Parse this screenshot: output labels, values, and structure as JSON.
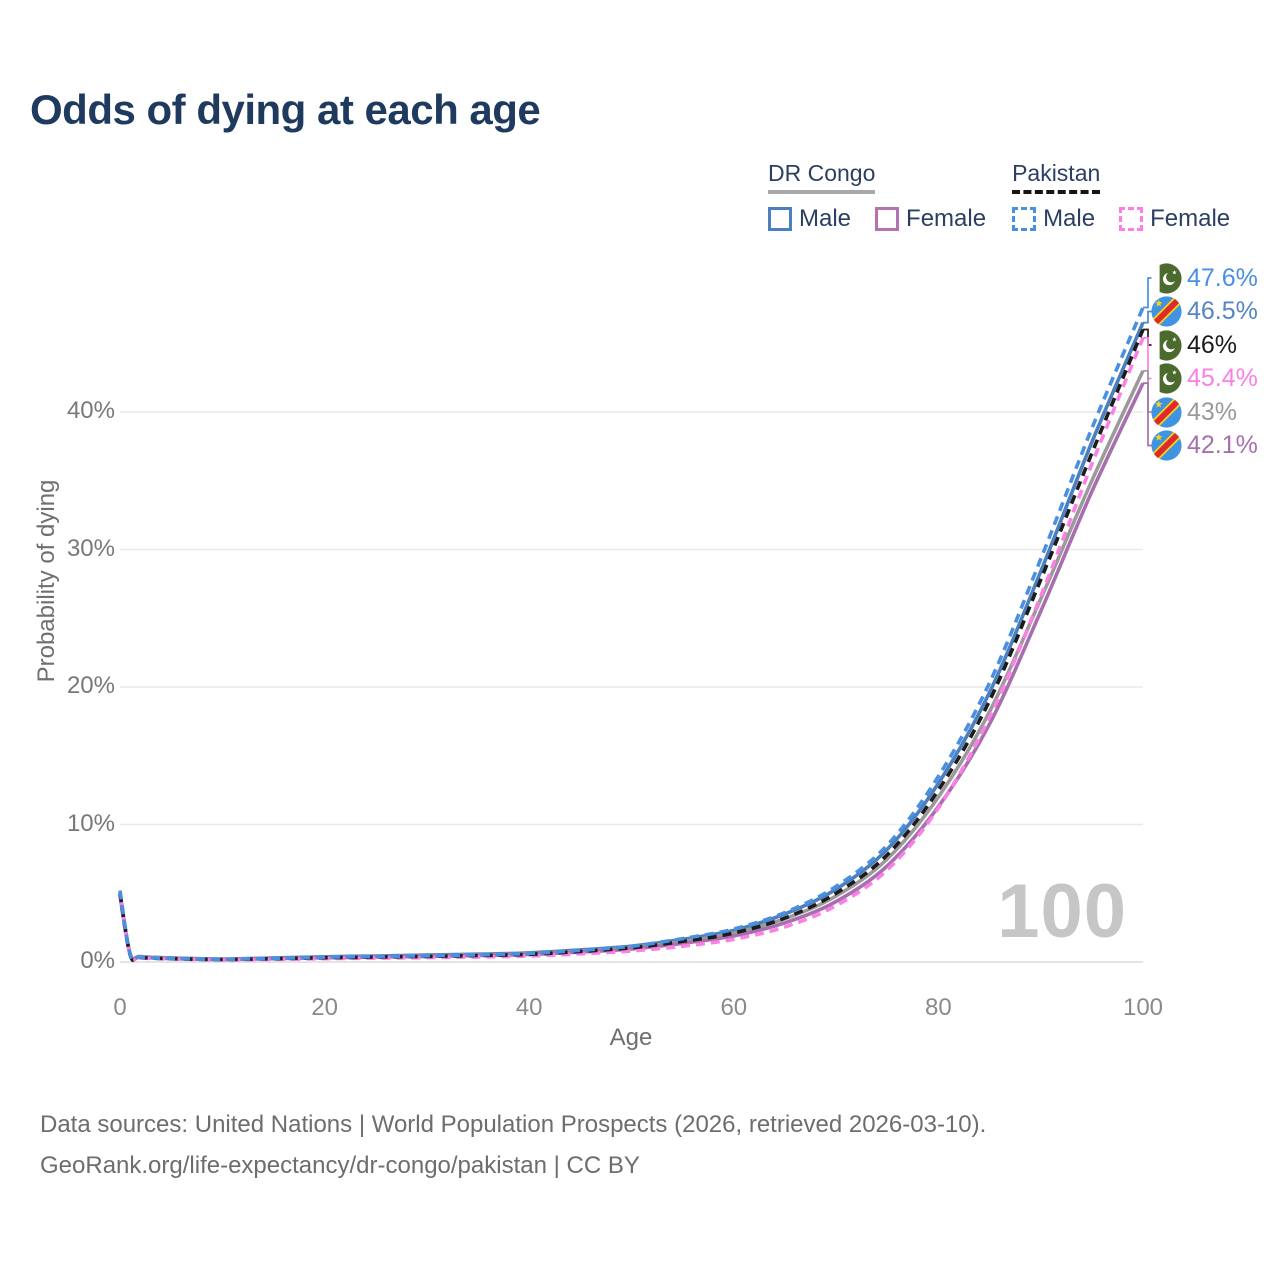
{
  "title": "Odds of dying at each age",
  "legend": {
    "groups": [
      {
        "name": "DR Congo",
        "line_style": "solid",
        "underline_color": "#a8a8a8",
        "items": [
          {
            "label": "Male",
            "color": "#4c7fc0",
            "dash": false
          },
          {
            "label": "Female",
            "color": "#b472b0",
            "dash": false
          }
        ]
      },
      {
        "name": "Pakistan",
        "line_style": "dashed",
        "underline_color": "#151515",
        "items": [
          {
            "label": "Male",
            "color": "#4a90e2",
            "dash": true
          },
          {
            "label": "Female",
            "color": "#fb7fe5",
            "dash": true
          }
        ]
      }
    ]
  },
  "end_labels": [
    {
      "value": "47.6%",
      "series": "Pakistan Male",
      "flag": "pakistan-flag-icon",
      "color": "#4a90e2"
    },
    {
      "value": "46.5%",
      "series": "DR Congo Male",
      "flag": "dr-congo-flag-icon",
      "color": "#5585c4"
    },
    {
      "value": "46%",
      "series": "Pakistan",
      "flag": "pakistan-flag-icon",
      "color": "#1c1c1c"
    },
    {
      "value": "45.4%",
      "series": "Pakistan Female",
      "flag": "pakistan-flag-icon",
      "color": "#fb7fe5"
    },
    {
      "value": "43%",
      "series": "DR Congo",
      "flag": "dr-congo-flag-icon",
      "color": "#9a9a9a"
    },
    {
      "value": "42.1%",
      "series": "DR Congo Female",
      "flag": "dr-congo-flag-icon",
      "color": "#a76fae"
    }
  ],
  "watermark": "100",
  "axes": {
    "x_title": "Age",
    "y_title": "Probability of dying"
  },
  "footer": {
    "line1": "Data sources: United Nations | World Population Prospects (2026, retrieved 2026-03-10).",
    "line2": "GeoRank.org/life-expectancy/dr-congo/pakistan | CC BY"
  },
  "chart_data": {
    "type": "line",
    "title": "Odds of dying at each age",
    "xlabel": "Age",
    "ylabel": "Probability of dying",
    "xlim": [
      0,
      100
    ],
    "ylim": [
      0,
      50
    ],
    "x_ticks": [
      0,
      20,
      40,
      60,
      80,
      100
    ],
    "y_ticks": [
      0,
      10,
      20,
      30,
      40
    ],
    "y_tick_labels": [
      "0%",
      "10%",
      "20%",
      "30%",
      "40%"
    ],
    "grid": "horizontal",
    "legend_position": "top-right",
    "units": "percent",
    "x": [
      0,
      1,
      2,
      5,
      10,
      15,
      20,
      25,
      30,
      35,
      40,
      45,
      50,
      55,
      60,
      65,
      70,
      75,
      80,
      85,
      90,
      95,
      100
    ],
    "series": [
      {
        "name": "DR Congo Male",
        "color": "#4c7fc0",
        "dash": false,
        "end_label": "46.5%",
        "values": [
          5.0,
          0.6,
          0.4,
          0.3,
          0.22,
          0.3,
          0.38,
          0.44,
          0.5,
          0.57,
          0.66,
          0.88,
          1.15,
          1.65,
          2.3,
          3.5,
          5.3,
          8.2,
          13.0,
          19.6,
          28.4,
          37.8,
          46.5
        ]
      },
      {
        "name": "DR Congo",
        "color": "#9a9a9a",
        "dash": false,
        "end_label": "43%",
        "values": [
          4.9,
          0.57,
          0.38,
          0.28,
          0.2,
          0.27,
          0.34,
          0.4,
          0.45,
          0.52,
          0.6,
          0.8,
          1.05,
          1.5,
          2.1,
          3.15,
          4.8,
          7.5,
          12.0,
          18.2,
          26.4,
          35.0,
          43.0
        ]
      },
      {
        "name": "DR Congo Female",
        "color": "#a76fae",
        "dash": false,
        "end_label": "42.1%",
        "values": [
          4.8,
          0.55,
          0.36,
          0.26,
          0.19,
          0.25,
          0.31,
          0.36,
          0.41,
          0.47,
          0.55,
          0.73,
          0.95,
          1.36,
          1.9,
          2.85,
          4.4,
          7.0,
          11.3,
          17.3,
          25.5,
          34.2,
          42.1
        ]
      },
      {
        "name": "Pakistan Female",
        "color": "#fb7fe5",
        "dash": true,
        "end_label": "45.4%",
        "values": [
          4.8,
          0.5,
          0.3,
          0.22,
          0.15,
          0.19,
          0.24,
          0.28,
          0.32,
          0.37,
          0.44,
          0.6,
          0.8,
          1.15,
          1.65,
          2.55,
          4.1,
          6.7,
          11.2,
          17.8,
          26.6,
          36.2,
          45.4
        ]
      },
      {
        "name": "Pakistan",
        "color": "#1c1c1c",
        "dash": true,
        "end_label": "46%",
        "values": [
          5.0,
          0.52,
          0.33,
          0.24,
          0.18,
          0.24,
          0.31,
          0.36,
          0.41,
          0.47,
          0.56,
          0.77,
          1.03,
          1.5,
          2.1,
          3.2,
          5.0,
          7.8,
          12.5,
          19.0,
          27.8,
          37.0,
          46.0
        ]
      },
      {
        "name": "Pakistan Male",
        "color": "#4a90e2",
        "dash": true,
        "end_label": "47.6%",
        "values": [
          5.2,
          0.55,
          0.35,
          0.25,
          0.2,
          0.26,
          0.35,
          0.4,
          0.45,
          0.52,
          0.62,
          0.85,
          1.15,
          1.7,
          2.4,
          3.6,
          5.5,
          8.5,
          13.5,
          20.3,
          29.3,
          38.8,
          47.6
        ]
      }
    ]
  }
}
